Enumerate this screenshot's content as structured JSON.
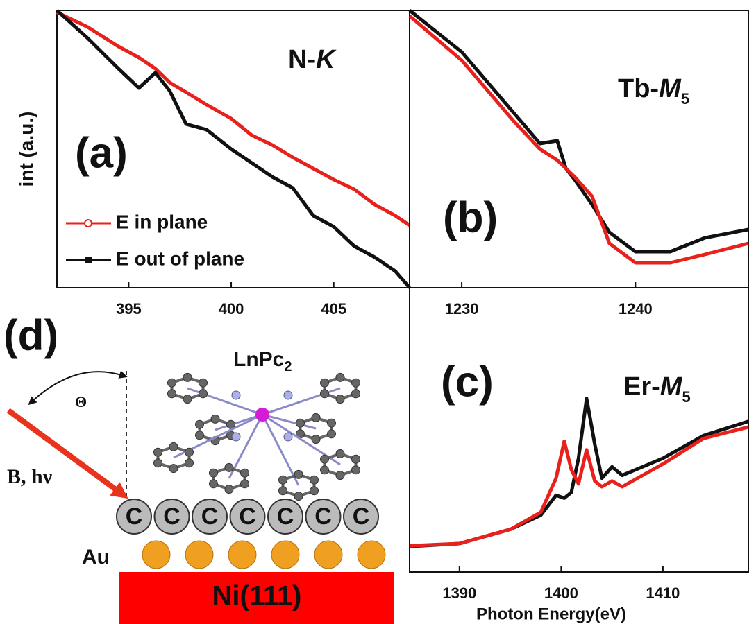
{
  "chart_data": [
    {
      "type": "line",
      "panel_label": "(a)",
      "annotation": [
        "N-",
        "K"
      ],
      "y_label": "int (a.u.)",
      "x": [
        391.5,
        393,
        394.5,
        395.5,
        396.3,
        397,
        397.8,
        398.8,
        400,
        401,
        402,
        403,
        404,
        405,
        406,
        407,
        408,
        408.7
      ],
      "series": [
        {
          "name": "E in plane",
          "color": "#e8211d",
          "marker": "circle",
          "values": [
            9.93,
            9.4,
            8.7,
            8.3,
            7.9,
            7.4,
            7.05,
            6.6,
            6.1,
            5.5,
            5.15,
            4.7,
            4.3,
            3.9,
            3.55,
            3.0,
            2.6,
            2.25
          ]
        },
        {
          "name": "E out of plane",
          "color": "#111111",
          "marker": "square",
          "values": [
            10,
            9.0,
            7.9,
            7.2,
            7.75,
            7.1,
            5.9,
            5.7,
            5.0,
            4.5,
            4.0,
            3.6,
            2.6,
            2.2,
            1.5,
            1.1,
            0.6,
            0
          ]
        }
      ],
      "xlim": [
        391.5,
        408.7
      ],
      "xticks": [
        395,
        400,
        405
      ],
      "ylim": [
        0,
        10
      ],
      "legend": "lower left"
    },
    {
      "type": "line",
      "panel_label": "(b)",
      "annotation": [
        "Tb-",
        "M",
        "5"
      ],
      "x": [
        1227,
        1230,
        1233,
        1234.5,
        1235.5,
        1236,
        1236.5,
        1237.5,
        1238.5,
        1240,
        1242,
        1244,
        1246.5
      ],
      "series": [
        {
          "color": "#111111",
          "values": [
            10,
            8.5,
            6.3,
            5.2,
            5.3,
            4.3,
            3.9,
            3.0,
            2.0,
            1.3,
            1.3,
            1.8,
            2.1
          ]
        },
        {
          "color": "#e8211d",
          "values": [
            9.8,
            8.2,
            6.0,
            5.0,
            4.6,
            4.3,
            4.0,
            3.3,
            1.6,
            0.9,
            0.9,
            1.2,
            1.6
          ]
        }
      ],
      "xlim": [
        1227,
        1246.5
      ],
      "xticks": [
        1230,
        1240
      ],
      "ylim": [
        0,
        10
      ]
    },
    {
      "type": "line",
      "panel_label": "(c)",
      "annotation": [
        "Er-",
        "M",
        "5"
      ],
      "x_label": "Photon Energy(eV)",
      "x": [
        1385.1,
        1390,
        1395,
        1398,
        1399.5,
        1400.3,
        1401,
        1401.7,
        1402.5,
        1403.3,
        1404,
        1405,
        1406,
        1410,
        1414,
        1418.4
      ],
      "series": [
        {
          "color": "#111111",
          "values": [
            0.9,
            1.0,
            1.5,
            2.0,
            2.7,
            2.6,
            2.8,
            4.0,
            6.1,
            4.5,
            3.3,
            3.7,
            3.4,
            4.0,
            4.8,
            5.3
          ]
        },
        {
          "color": "#e8211d",
          "values": [
            0.92,
            1.0,
            1.5,
            2.1,
            3.3,
            4.6,
            3.6,
            3.1,
            4.3,
            3.2,
            3.0,
            3.2,
            3.0,
            3.8,
            4.7,
            5.1
          ]
        }
      ],
      "xlim": [
        1385.1,
        1418.4
      ],
      "xticks": [
        1390,
        1400,
        1410
      ],
      "ylim": [
        0,
        10
      ]
    }
  ],
  "diagram": {
    "panel_label": "(d)",
    "molecule": [
      "LnPc",
      "2"
    ],
    "angle": "Θ",
    "beam": "B, hν",
    "carbon": [
      "C",
      "C",
      "C",
      "C",
      "C",
      "C",
      "C"
    ],
    "gold": "Au",
    "substrate": "Ni(111)"
  }
}
